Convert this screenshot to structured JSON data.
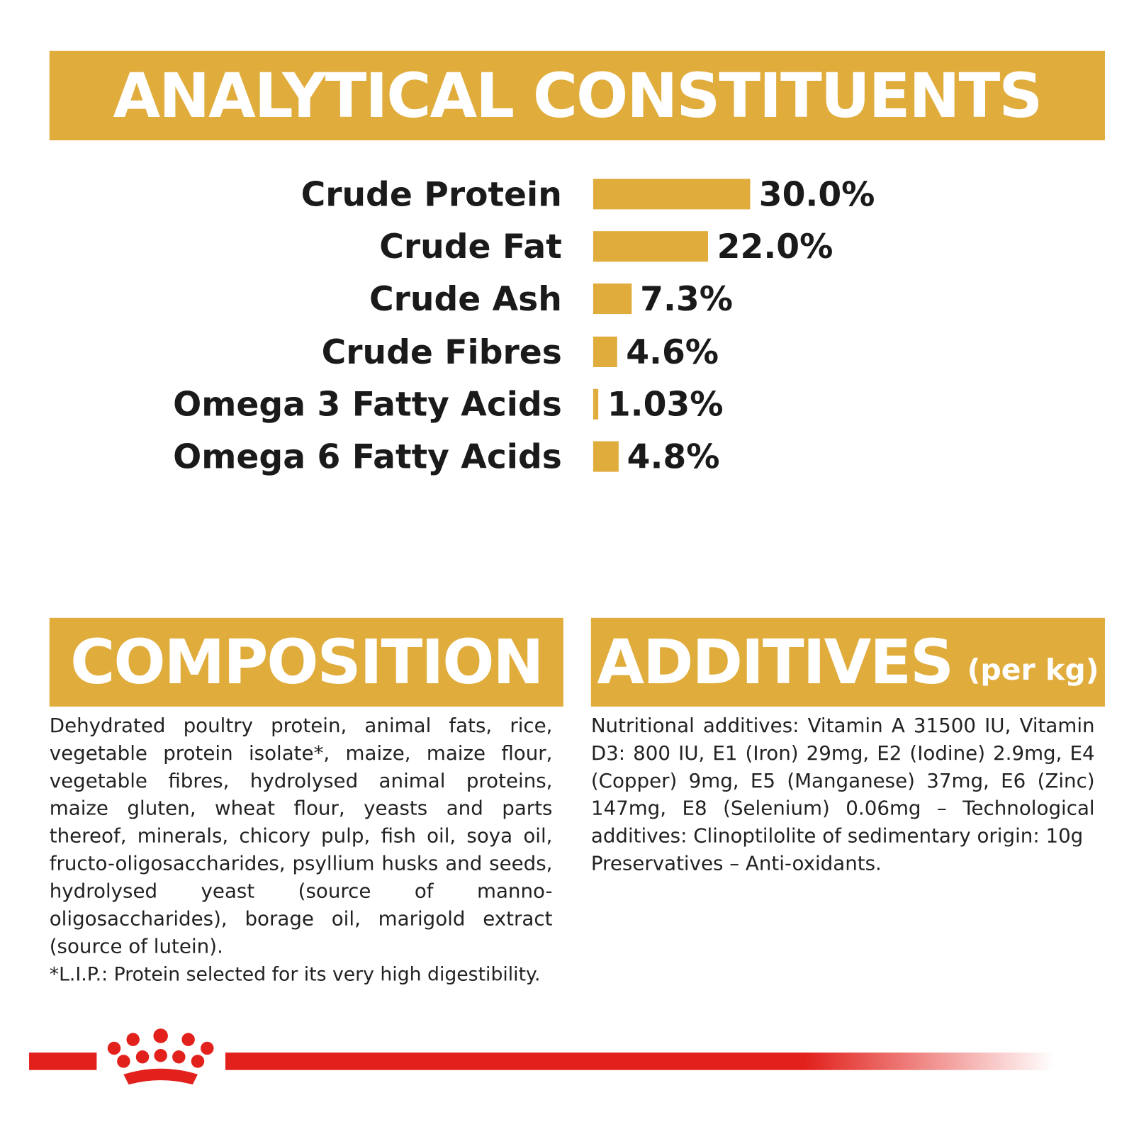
{
  "chart_data": {
    "type": "bar",
    "orientation": "horizontal",
    "title": "ANALYTICAL CONSTITUENTS",
    "categories": [
      "Crude Protein",
      "Crude Fat",
      "Crude Ash",
      "Crude Fibres",
      "Omega 3 Fatty Acids",
      "Omega 6 Fatty Acids"
    ],
    "values": [
      30.0,
      22.0,
      7.3,
      4.6,
      1.03,
      4.8
    ],
    "value_labels": [
      "30.0%",
      "22.0%",
      "7.3%",
      "4.6%",
      "1.03%",
      "4.8%"
    ],
    "color": "#e0ac3c"
  },
  "composition": {
    "title": "COMPOSITION",
    "text": "Dehydrated poultry protein, animal fats, rice, vegetable protein isolate*, maize, maize flour, vegetable fibres, hydrolysed animal proteins, maize gluten, wheat flour, yeasts and parts thereof, minerals, chicory pulp, fish oil, soya oil, fructo-oligosaccharides, psyllium husks and seeds, hydrolysed yeast (source of manno-oligosaccharides), borage oil, marigold extract (source of lutein).",
    "note": "*L.I.P.: Protein selected for its very high digestibility."
  },
  "additives": {
    "title": "ADDITIVES",
    "unit": "(per kg)",
    "text": "Nutritional additives: Vitamin A 31500 IU, Vitamin D3: 800 IU, E1 (Iron) 29mg, E2 (Iodine) 2.9mg, E4 (Copper) 9mg, E5 (Manganese) 37mg, E6 (Zinc) 147mg, E8 (Selenium) 0.06mg – Technological additives: Clinoptilolite of sedimentary origin: 10g",
    "note": "Preservatives – Anti-oxidants."
  }
}
